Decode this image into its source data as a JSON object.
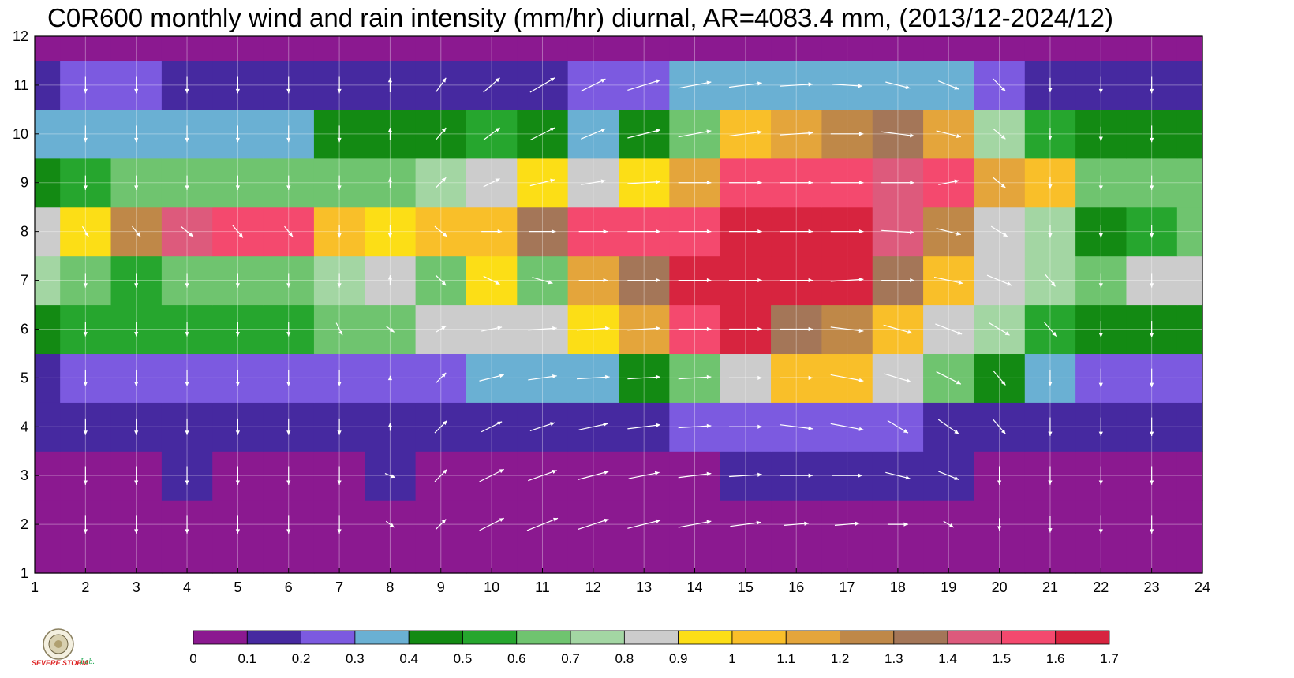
{
  "title": "C0R600 monthly wind and rain intensity (mm/hr) diurnal, AR=4083.4 mm, (2013/12-2024/12)",
  "chart_data": {
    "type": "heatmap",
    "x_ticks": [
      1,
      2,
      3,
      4,
      5,
      6,
      7,
      8,
      9,
      10,
      11,
      12,
      13,
      14,
      15,
      16,
      17,
      18,
      19,
      20,
      21,
      22,
      23,
      24
    ],
    "y_ticks": [
      1,
      2,
      3,
      4,
      5,
      6,
      7,
      8,
      9,
      10,
      11,
      12
    ],
    "xlim": [
      1,
      24
    ],
    "ylim": [
      1,
      12
    ],
    "grid": true,
    "colorbar": {
      "levels": [
        0,
        0.1,
        0.2,
        0.3,
        0.4,
        0.5,
        0.6,
        0.7,
        0.8,
        0.9,
        1,
        1.1,
        1.2,
        1.3,
        1.4,
        1.5,
        1.6,
        1.7
      ],
      "labels": [
        "0",
        "0.1",
        "0.2",
        "0.3",
        "0.4",
        "0.5",
        "0.6",
        "0.7",
        "0.8",
        "0.9",
        "1",
        "1.1",
        "1.2",
        "1.3",
        "1.4",
        "1.5",
        "1.6",
        "1.7"
      ],
      "colors": [
        "#8b1990",
        "#4629a0",
        "#7c5ae0",
        "#6ab0d3",
        "#138a13",
        "#26a62e",
        "#6fc46f",
        "#a3d6a3",
        "#cccccc",
        "#fcde16",
        "#f9bf29",
        "#e4a53b",
        "#bf8848",
        "#a47658",
        "#dd5a7c",
        "#f4496e",
        "#d7243f"
      ]
    },
    "z": [
      [
        0.05,
        0.05,
        0.05,
        0.05,
        0.05,
        0.05,
        0.05,
        0.05,
        0.05,
        0.05,
        0.05,
        0.05,
        0.05,
        0.08,
        0.05,
        0.05,
        0.05,
        0.05,
        0.05,
        0.05,
        0.05,
        0.05,
        0.05,
        0.05
      ],
      [
        0.05,
        0.05,
        0.05,
        0.05,
        0.05,
        0.05,
        0.05,
        0.05,
        0.05,
        0.05,
        0.05,
        0.05,
        0.05,
        0.05,
        0.05,
        0.05,
        0.05,
        0.05,
        0.05,
        0.05,
        0.05,
        0.05,
        0.05,
        0.05
      ],
      [
        0.05,
        0.05,
        0.08,
        0.15,
        0.05,
        0.05,
        0.05,
        0.1,
        0.05,
        0.05,
        0.05,
        0.05,
        0.05,
        0.05,
        0.15,
        0.15,
        0.1,
        0.15,
        0.12,
        0.08,
        0.05,
        0.05,
        0.05,
        0.05
      ],
      [
        0.12,
        0.15,
        0.15,
        0.15,
        0.15,
        0.15,
        0.12,
        0.12,
        0.12,
        0.15,
        0.18,
        0.18,
        0.15,
        0.2,
        0.25,
        0.25,
        0.25,
        0.2,
        0.18,
        0.15,
        0.12,
        0.12,
        0.12,
        0.12
      ],
      [
        0.18,
        0.2,
        0.2,
        0.25,
        0.25,
        0.25,
        0.25,
        0.28,
        0.28,
        0.3,
        0.35,
        0.38,
        0.45,
        0.6,
        0.85,
        1.0,
        1.0,
        0.8,
        0.6,
        0.42,
        0.3,
        0.25,
        0.22,
        0.2
      ],
      [
        0.45,
        0.52,
        0.5,
        0.58,
        0.55,
        0.5,
        0.6,
        0.6,
        0.8,
        0.88,
        0.85,
        0.9,
        1.1,
        1.5,
        1.65,
        1.35,
        1.25,
        1.0,
        0.85,
        0.7,
        0.55,
        0.42,
        0.4,
        0.42
      ],
      [
        0.75,
        0.62,
        0.55,
        0.65,
        0.65,
        0.65,
        0.7,
        0.8,
        0.65,
        0.9,
        0.65,
        1.1,
        1.3,
        1.6,
        1.7,
        1.7,
        1.6,
        1.3,
        1.05,
        0.8,
        0.7,
        0.65,
        0.8,
        0.8
      ],
      [
        0.8,
        0.95,
        1.2,
        1.4,
        1.5,
        1.5,
        1.0,
        0.95,
        1.0,
        1.05,
        1.3,
        1.55,
        1.55,
        1.55,
        1.6,
        1.6,
        1.6,
        1.4,
        1.25,
        0.85,
        0.7,
        0.45,
        0.55,
        0.65
      ],
      [
        0.48,
        0.55,
        0.6,
        0.65,
        0.65,
        0.65,
        0.62,
        0.62,
        0.75,
        0.85,
        0.9,
        0.85,
        0.95,
        1.1,
        1.5,
        1.55,
        1.5,
        1.45,
        1.55,
        1.1,
        1.0,
        0.65,
        0.62,
        0.6
      ],
      [
        0.32,
        0.35,
        0.38,
        0.3,
        0.3,
        0.32,
        0.42,
        0.45,
        0.48,
        0.5,
        0.45,
        0.35,
        0.48,
        0.6,
        1.0,
        1.1,
        1.2,
        1.35,
        1.15,
        0.75,
        0.55,
        0.42,
        0.42,
        0.45
      ],
      [
        0.15,
        0.2,
        0.22,
        0.15,
        0.15,
        0.15,
        0.15,
        0.15,
        0.15,
        0.18,
        0.18,
        0.2,
        0.25,
        0.35,
        0.38,
        0.38,
        0.38,
        0.38,
        0.3,
        0.22,
        0.18,
        0.15,
        0.15,
        0.15
      ],
      [
        0.05,
        0.08,
        0.05,
        0.05,
        0.05,
        0.05,
        0.05,
        0.05,
        0.05,
        0.05,
        0.05,
        0.05,
        0.05,
        0.05,
        0.05,
        0.05,
        0.05,
        0.05,
        0.05,
        0.05,
        0.05,
        0.05,
        0.05,
        0.05
      ]
    ],
    "wind_u": [
      [
        0,
        0,
        0,
        0,
        0,
        0,
        0,
        0,
        0.8,
        1.5,
        1.5,
        1.0,
        1.2,
        1.5,
        1.5,
        1.2,
        1.0,
        0,
        0,
        0,
        0,
        0,
        0,
        0
      ],
      [
        0,
        0,
        0,
        0,
        0,
        0,
        0,
        0.4,
        0.5,
        1.2,
        1.5,
        1.5,
        1.6,
        1.6,
        1.5,
        1.2,
        1.2,
        1.0,
        0.5,
        0,
        0,
        0,
        0,
        0
      ],
      [
        0,
        0,
        0,
        0,
        0,
        0,
        0,
        0.5,
        0.6,
        1.2,
        1.4,
        1.5,
        1.5,
        1.6,
        1.6,
        1.6,
        1.5,
        1.2,
        1.0,
        0,
        0,
        0,
        0,
        0
      ],
      [
        0,
        0,
        0,
        0,
        0,
        0,
        0,
        0,
        0.6,
        1.0,
        1.2,
        1.4,
        1.6,
        1.6,
        1.6,
        1.6,
        1.6,
        1.0,
        1.0,
        0.6,
        0,
        0,
        0,
        0
      ],
      [
        0,
        0,
        0,
        0,
        0,
        0,
        0,
        0,
        0.5,
        1.2,
        1.4,
        1.6,
        1.6,
        1.6,
        1.6,
        1.6,
        1.6,
        1.3,
        1.2,
        0.6,
        0,
        0,
        0,
        0
      ],
      [
        0,
        0,
        0,
        0,
        0,
        0,
        0.3,
        0.4,
        0.5,
        1.0,
        1.4,
        1.6,
        1.6,
        1.6,
        1.6,
        1.6,
        1.6,
        1.4,
        1.3,
        1.0,
        0.6,
        0,
        0,
        0
      ],
      [
        0,
        0,
        0,
        0,
        0,
        0,
        0,
        0,
        0.5,
        0.8,
        1.0,
        1.4,
        1.6,
        1.6,
        1.6,
        1.6,
        1.6,
        1.6,
        1.4,
        1.2,
        0.5,
        0,
        0,
        0
      ],
      [
        0,
        0.3,
        0.4,
        0.6,
        0.5,
        0.4,
        0,
        0,
        0.6,
        1.0,
        1.3,
        1.4,
        1.6,
        1.6,
        1.6,
        1.6,
        1.6,
        1.6,
        1.2,
        0.8,
        0,
        0,
        0,
        0
      ],
      [
        0,
        0,
        0,
        0,
        0,
        0,
        0,
        0,
        0.5,
        0.8,
        1.2,
        1.2,
        1.6,
        1.6,
        1.6,
        1.6,
        1.6,
        1.6,
        1.0,
        0.6,
        0,
        0,
        0,
        0
      ],
      [
        0,
        0,
        0,
        0,
        0,
        0,
        0,
        0,
        0.5,
        0.8,
        1.2,
        1.2,
        1.6,
        1.6,
        1.6,
        1.6,
        1.6,
        1.6,
        1.2,
        0.6,
        0,
        0,
        0,
        0
      ],
      [
        0,
        0,
        0,
        0,
        0,
        0,
        0,
        0,
        0.5,
        0.8,
        1.2,
        1.2,
        1.6,
        1.6,
        1.6,
        1.6,
        1.5,
        1.2,
        1.0,
        0.6,
        0,
        0,
        0,
        0
      ],
      [
        0,
        0,
        0,
        0,
        0,
        0,
        0,
        0,
        0,
        0,
        0,
        0,
        0,
        0,
        0,
        0,
        0,
        0,
        0,
        0,
        0,
        0,
        0,
        0
      ]
    ],
    "wind_v": [
      [
        -0.8,
        -0.8,
        -0.8,
        -0.8,
        -0.8,
        -0.8,
        -0.8,
        -0.8,
        0.4,
        0.5,
        0.5,
        0.4,
        0.5,
        0.3,
        0.3,
        0.1,
        0,
        0,
        0,
        0,
        0,
        0,
        0,
        0
      ],
      [
        -0.9,
        -0.9,
        -0.9,
        -0.9,
        -0.9,
        -0.9,
        -0.9,
        -0.3,
        0.5,
        0.6,
        0.6,
        0.5,
        0.4,
        0.3,
        0.2,
        0.1,
        0.1,
        0,
        -0.3,
        -0.6,
        -0.8,
        -0.9,
        -0.9,
        -0.9
      ],
      [
        -0.9,
        -0.9,
        -0.9,
        -0.9,
        -0.9,
        -0.9,
        -0.9,
        -0.2,
        0.6,
        0.6,
        0.5,
        0.4,
        0.3,
        0.2,
        0.1,
        0,
        0,
        -0.3,
        -0.4,
        -0.9,
        -0.9,
        -0.9,
        -0.9,
        -0.9
      ],
      [
        -0.8,
        -0.8,
        -0.8,
        -0.8,
        -0.8,
        -0.8,
        -0.8,
        0.4,
        0.6,
        0.5,
        0.4,
        0.3,
        0.2,
        0.1,
        0,
        -0.2,
        -0.3,
        -0.6,
        -0.7,
        -0.7,
        -0.9,
        -0.9,
        -0.9,
        -0.9
      ],
      [
        -0.8,
        -0.8,
        -0.8,
        -0.8,
        -0.8,
        -0.8,
        -0.8,
        0.2,
        0.5,
        0.3,
        0.2,
        0.1,
        0.1,
        0.1,
        0,
        0,
        -0.3,
        -0.4,
        -0.6,
        -0.7,
        -0.8,
        -0.9,
        -0.9,
        -0.9
      ],
      [
        -0.7,
        -0.7,
        -0.7,
        -0.7,
        -0.7,
        -0.7,
        -0.6,
        -0.3,
        0.3,
        0.2,
        0.1,
        0.1,
        0.1,
        0,
        0,
        0,
        -0.2,
        -0.4,
        -0.5,
        -0.6,
        -0.7,
        -0.8,
        -0.8,
        -0.8
      ],
      [
        -0.6,
        -0.7,
        -0.7,
        -0.7,
        -0.7,
        -0.7,
        -0.7,
        0.5,
        -0.5,
        -0.4,
        -0.3,
        0,
        0,
        0,
        0,
        0,
        0.1,
        0,
        -0.3,
        -0.5,
        -0.6,
        -0.7,
        -0.7,
        -0.7
      ],
      [
        -0.6,
        -0.5,
        -0.5,
        -0.5,
        -0.6,
        -0.5,
        -0.6,
        -0.6,
        -0.5,
        0,
        0,
        0,
        0,
        0,
        0,
        0,
        0,
        -0.1,
        -0.3,
        -0.5,
        -0.6,
        -0.6,
        -0.6,
        -0.6
      ],
      [
        -0.7,
        -0.7,
        -0.7,
        -0.7,
        -0.7,
        -0.7,
        -0.7,
        0.5,
        0.5,
        0.4,
        0.3,
        0.2,
        0.1,
        0,
        0,
        0,
        0,
        0,
        0.2,
        -0.5,
        -0.6,
        -0.7,
        -0.7,
        -0.7
      ],
      [
        -0.8,
        -0.8,
        -0.8,
        -0.8,
        -0.8,
        -0.8,
        -0.8,
        0.6,
        0.6,
        0.6,
        0.6,
        0.5,
        0.4,
        0.3,
        0.2,
        0.1,
        0,
        -0.2,
        -0.3,
        -0.5,
        -0.6,
        -0.7,
        -0.8,
        -0.8
      ],
      [
        -0.8,
        -0.8,
        -0.8,
        -0.8,
        -0.8,
        -0.8,
        -0.8,
        0.7,
        0.7,
        0.7,
        0.7,
        0.6,
        0.5,
        0.3,
        0.2,
        0.1,
        -0.1,
        -0.3,
        -0.4,
        -0.6,
        -0.7,
        -0.8,
        -0.8,
        -0.8
      ],
      [
        0,
        0,
        0,
        0,
        0,
        0,
        0,
        0,
        0,
        0,
        0,
        0,
        0,
        0,
        0,
        0,
        0,
        0,
        0,
        0,
        0,
        0,
        0,
        0
      ]
    ]
  },
  "logo": {
    "text_main": "SEVERE STORM",
    "text_lab": "Lab."
  }
}
